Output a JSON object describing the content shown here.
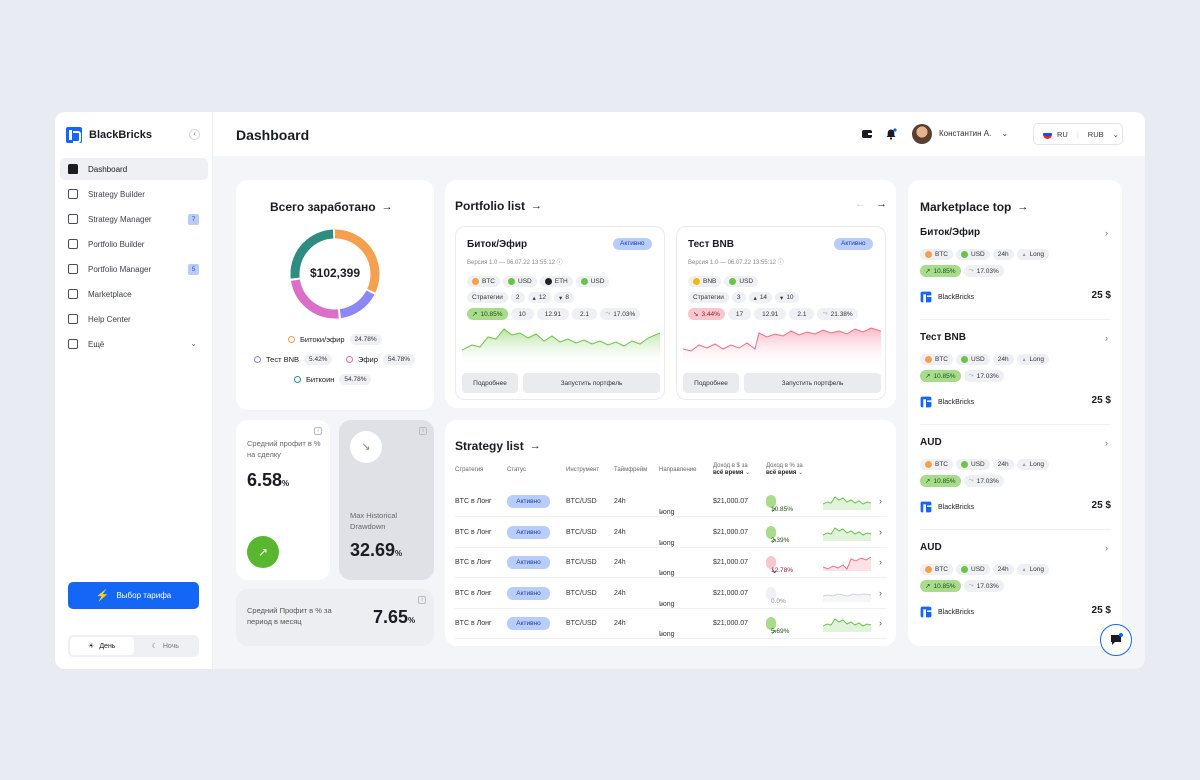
{
  "app": {
    "name": "BlackBricks"
  },
  "sidebar": {
    "items": [
      {
        "label": "Dashboard",
        "active": true
      },
      {
        "label": "Strategy Builder"
      },
      {
        "label": "Strategy Manager",
        "badge": "7"
      },
      {
        "label": "Portfolio Builder"
      },
      {
        "label": "Portfolio Manager",
        "badge": "5"
      },
      {
        "label": "Marketplace"
      },
      {
        "label": "Help Center"
      },
      {
        "label": "Ещё"
      }
    ],
    "plan_button": "Выбор тарифа",
    "theme_day": "День",
    "theme_night": "Ночь"
  },
  "header": {
    "title": "Dashboard",
    "user_name": "Константин А.",
    "lang": "RU",
    "currency": "RUB"
  },
  "earned": {
    "title": "Всего заработано",
    "total": "$102,399",
    "segments": [
      {
        "name": "Битоки/эфир",
        "pct": "24.78%",
        "color": "#f4a04e"
      },
      {
        "name": "Тест BNB",
        "pct": "5.42%",
        "color": "#8c87f3"
      },
      {
        "name": "Эфир",
        "pct": "54.78%",
        "color": "#d96fc9"
      },
      {
        "name": "Биткоин",
        "pct": "54.78%",
        "color": "#2e8c83"
      }
    ]
  },
  "stats": {
    "avg_profit_label": "Средний профит в % на сделку",
    "avg_profit_value": "6.58",
    "pct_sign": "%",
    "drawdown_label": "Max Historical Drawdown",
    "drawdown_value": "32.69",
    "month_label": "Средний Профит в % за период в месяц",
    "month_value": "7.65"
  },
  "portfolio": {
    "title": "Portfolio list",
    "cards": [
      {
        "name": "Биток/Эфир",
        "status": "Активно",
        "version": "Версия 1.0 — 06.07.22 13:55:12",
        "coins": [
          "BTC",
          "USD",
          "ETH",
          "USD"
        ],
        "strategies_label": "Стратегии",
        "strategies": "2",
        "up": "12",
        "down": "8",
        "perf": "10.85%",
        "v1": "10",
        "v2": "12.91",
        "v3": "2.1",
        "v4": "17.03%",
        "more": "Подробнее",
        "launch": "Запустить портфель"
      },
      {
        "name": "Тест BNB",
        "status": "Активно",
        "version": "Версия 1.0 — 06.07.22 13:55:12",
        "coins": [
          "BNB",
          "USD"
        ],
        "strategies_label": "Стратегии",
        "strategies": "3",
        "up": "14",
        "down": "10",
        "perf": "3.44%",
        "v1": "17",
        "v2": "12.91",
        "v3": "2.1",
        "v4": "21.38%",
        "more": "Подробнее",
        "launch": "Запустить портфель"
      }
    ]
  },
  "strategy": {
    "title": "Strategy list",
    "headers": [
      "Стратегия",
      "Статус",
      "Инструмент",
      "Таймфрейм",
      "Направление",
      "Доход в $ за",
      "всё время",
      "Доход в % за",
      "всё время"
    ],
    "rows": [
      {
        "name": "BTC в Лонг",
        "status": "Активно",
        "instrument": "BTC/USD",
        "tf": "24h",
        "dir": "Long",
        "usd": "$21,000.07",
        "pct": "10.85%",
        "trend": "up"
      },
      {
        "name": "BTC в Лонг",
        "status": "Активно",
        "instrument": "BTC/USD",
        "tf": "24h",
        "dir": "Long",
        "usd": "$21,000.07",
        "pct": "2.39%",
        "trend": "up"
      },
      {
        "name": "BTC в Лонг",
        "status": "Активно",
        "instrument": "BTC/USD",
        "tf": "24h",
        "dir": "Long",
        "usd": "$21,000.07",
        "pct": "12.78%",
        "trend": "down"
      },
      {
        "name": "BTC в Лонг",
        "status": "Активно",
        "instrument": "BTC/USD",
        "tf": "24h",
        "dir": "Long",
        "usd": "$21,000.07",
        "pct": "0.0%",
        "trend": "flat"
      },
      {
        "name": "BTC в Лонг",
        "status": "Активно",
        "instrument": "BTC/USD",
        "tf": "24h",
        "dir": "Long",
        "usd": "$21,000.07",
        "pct": "5.69%",
        "trend": "up"
      }
    ]
  },
  "marketplace": {
    "title": "Marketplace top",
    "items": [
      {
        "name": "Биток/Эфир",
        "c1": "BTC",
        "c2": "USD",
        "tf": "24h",
        "dir": "Long",
        "perf": "10.85%",
        "perf2": "17.03%",
        "author": "BlackBricks",
        "price": "25 $"
      },
      {
        "name": "Тест BNB",
        "c1": "BTC",
        "c2": "USD",
        "tf": "24h",
        "dir": "Long",
        "perf": "10.85%",
        "perf2": "17.03%",
        "author": "BlackBricks",
        "price": "25 $"
      },
      {
        "name": "AUD",
        "c1": "BTC",
        "c2": "USD",
        "tf": "24h",
        "dir": "Long",
        "perf": "10.85%",
        "perf2": "17.03%",
        "author": "BlackBricks",
        "price": "25 $"
      },
      {
        "name": "AUD",
        "c1": "BTC",
        "c2": "USD",
        "tf": "24h",
        "dir": "Long",
        "perf": "10.85%",
        "perf2": "17.03%",
        "author": "BlackBricks",
        "price": "25 $"
      }
    ]
  },
  "colors": {
    "accent": "#1467f5",
    "green": "#6cc24a",
    "red": "#f06c86"
  }
}
